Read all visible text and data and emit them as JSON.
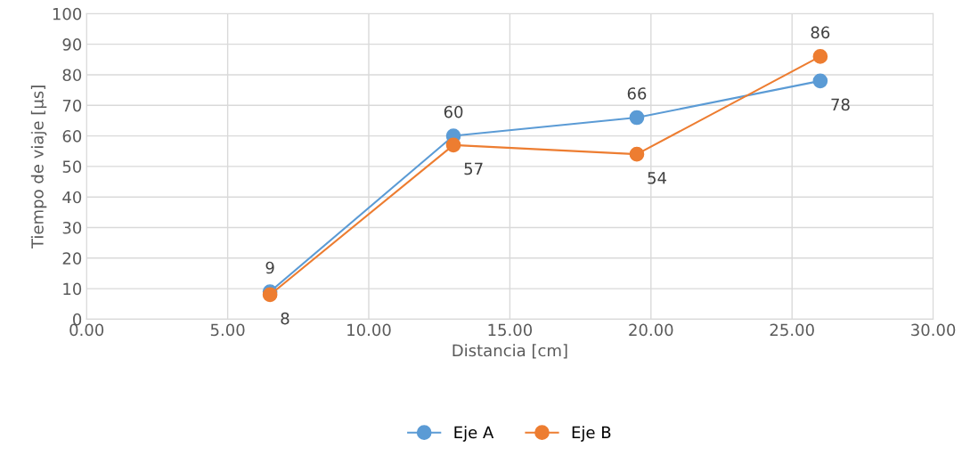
{
  "chart_data": {
    "type": "line",
    "xlabel": "Distancia [cm]",
    "ylabel": "Tiempo de viaje [µs]",
    "x": [
      6.5,
      13,
      19.5,
      26
    ],
    "series": [
      {
        "name": "Eje A",
        "color": "#5b9bd5",
        "values": [
          9,
          60,
          66,
          78
        ]
      },
      {
        "name": "Eje B",
        "color": "#ed7d31",
        "values": [
          8,
          57,
          54,
          86
        ]
      }
    ],
    "xlim": [
      0,
      30
    ],
    "xticks": [
      {
        "value": 0,
        "label": "0.00"
      },
      {
        "value": 5,
        "label": "5.00"
      },
      {
        "value": 10,
        "label": "10.00"
      },
      {
        "value": 15,
        "label": "15.00"
      },
      {
        "value": 20,
        "label": "20.00"
      },
      {
        "value": 25,
        "label": "25.00"
      },
      {
        "value": 30,
        "label": "30.00"
      }
    ],
    "ylim": [
      0,
      100
    ],
    "yticks": [
      0,
      10,
      20,
      30,
      40,
      50,
      60,
      70,
      80,
      90,
      100
    ],
    "grid": true,
    "legend": "bottom",
    "marker": "circle",
    "line_style": "solid",
    "data_labels": true
  }
}
